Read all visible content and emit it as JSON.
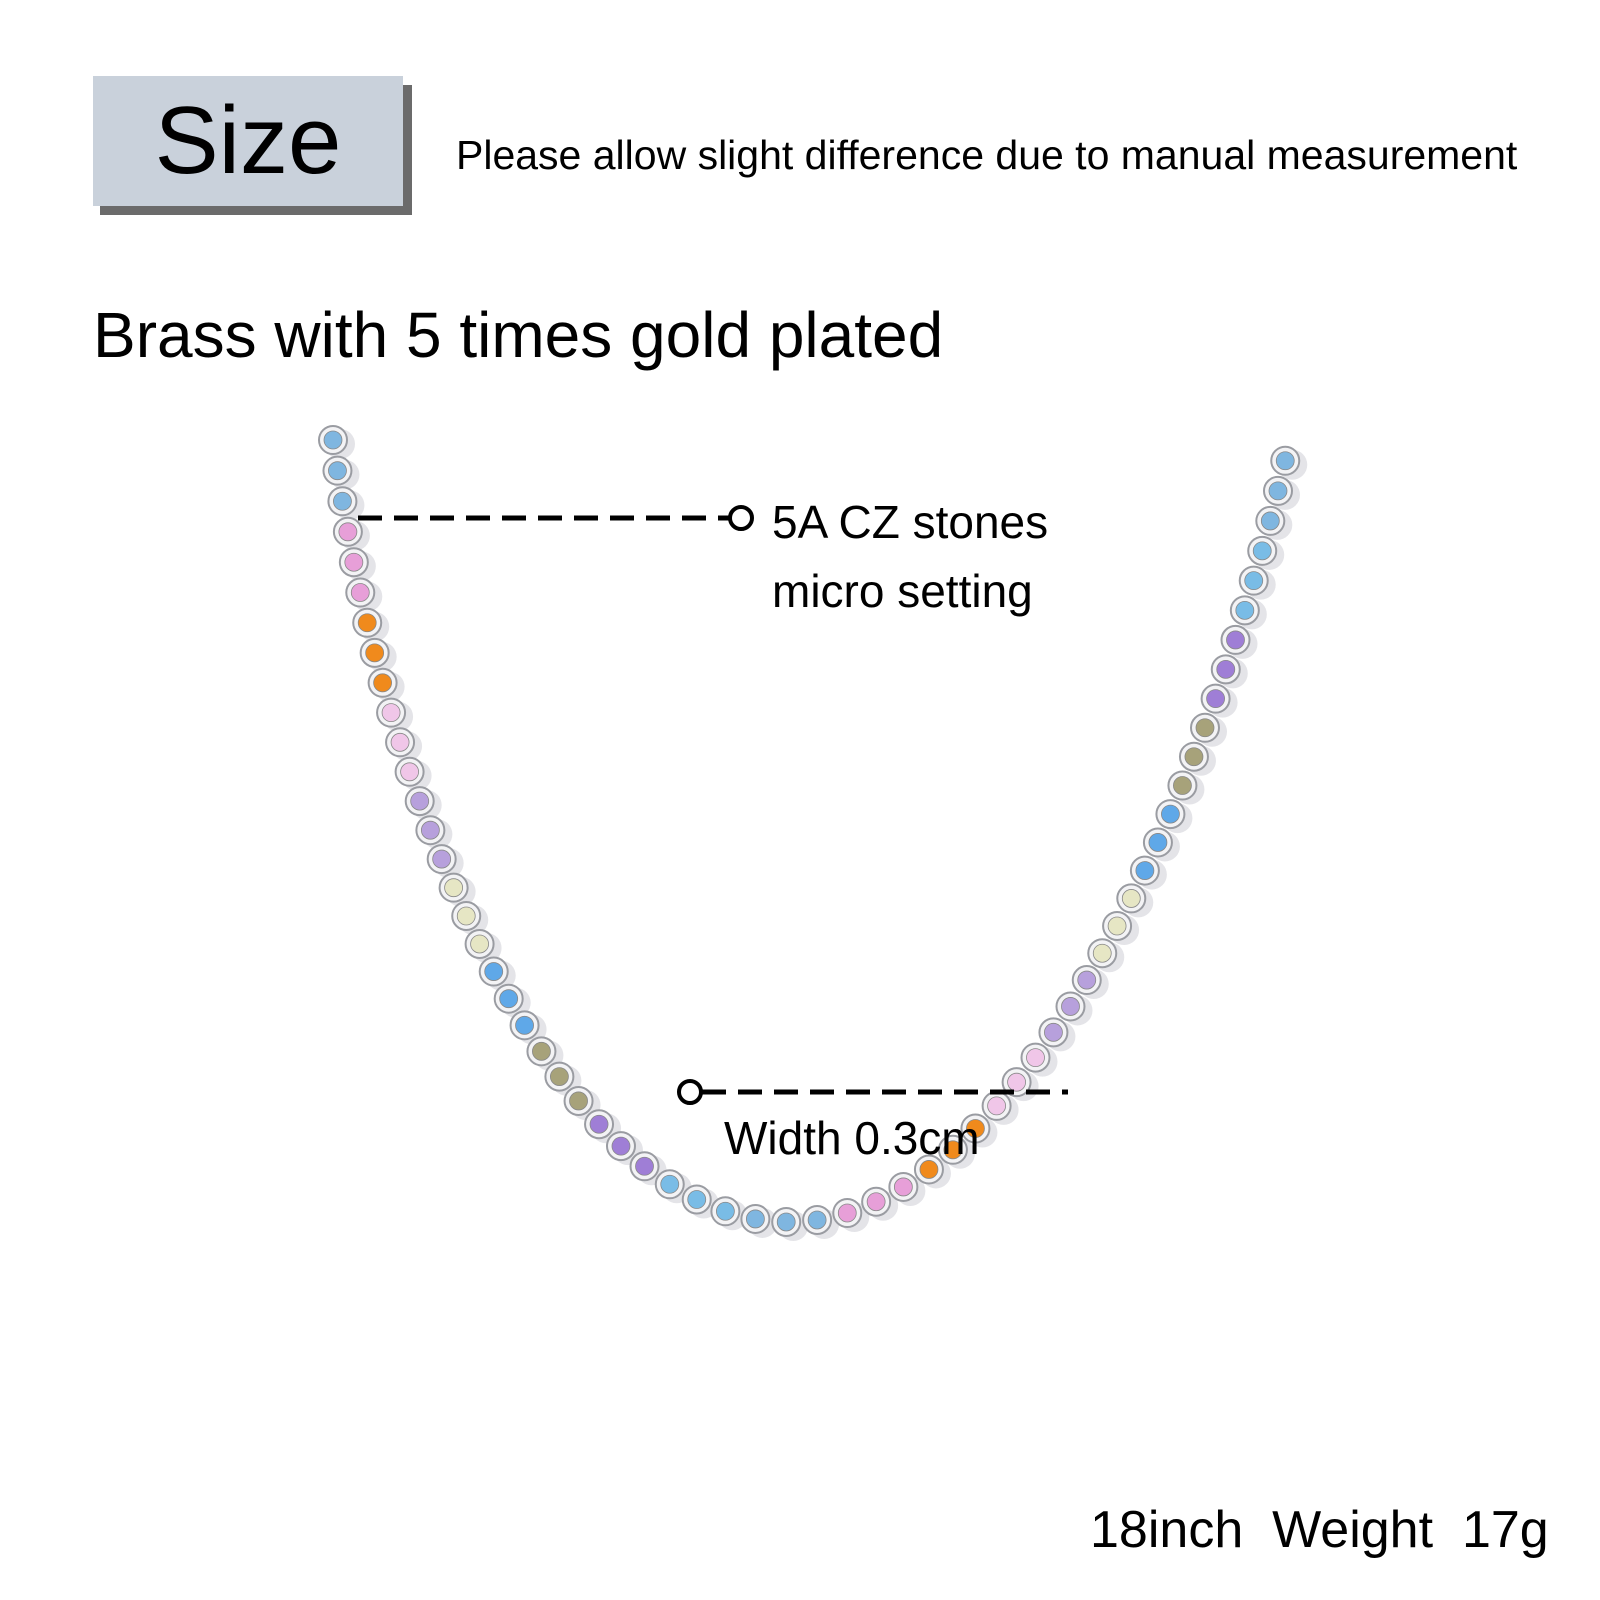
{
  "header": {
    "size_label": "Size",
    "note": "Please allow slight difference due to manual measurement"
  },
  "material": "Brass with 5 times gold plated",
  "callouts": {
    "stones_line1": "5A CZ stones",
    "stones_line2": "micro setting",
    "width": "Width 0.3cm"
  },
  "footer": {
    "length": "18inch",
    "weight_label": "Weight",
    "weight": "17g"
  },
  "colors": {
    "size_box": "#c9d1db",
    "size_shadow": "#6b6b6b",
    "metal": "#d9dadd",
    "stone_palette": [
      "#7fb6e0",
      "#e79fd8",
      "#f08a1c",
      "#f0c6e8",
      "#b7a0dc",
      "#e6e6c4",
      "#5fa8e8",
      "#a7a27a",
      "#9f7ed6",
      "#79bce6"
    ]
  }
}
